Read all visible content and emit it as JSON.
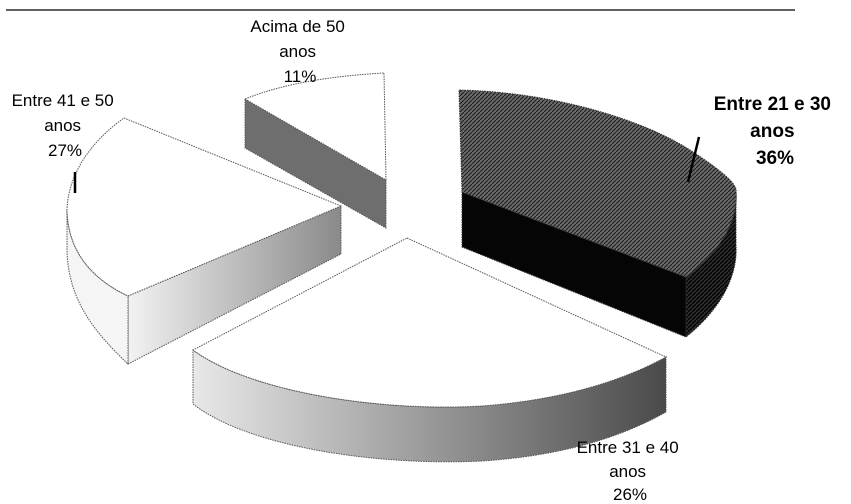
{
  "chart_data": {
    "type": "pie",
    "style": "3d-exploded",
    "slices": [
      {
        "line1": "Entre 21 e 30",
        "line2": "anos",
        "pct": "36%",
        "value": 36,
        "emphasis": true
      },
      {
        "line1": "Entre 31 e 40",
        "line2": "anos",
        "pct": "26%",
        "value": 26,
        "emphasis": false
      },
      {
        "line1": "Entre 41 e 50",
        "line2": "anos",
        "pct": "27%",
        "value": 27,
        "emphasis": false
      },
      {
        "line1": "Acima de 50",
        "line2": "anos",
        "pct": "11%",
        "value": 11,
        "emphasis": false
      }
    ]
  }
}
